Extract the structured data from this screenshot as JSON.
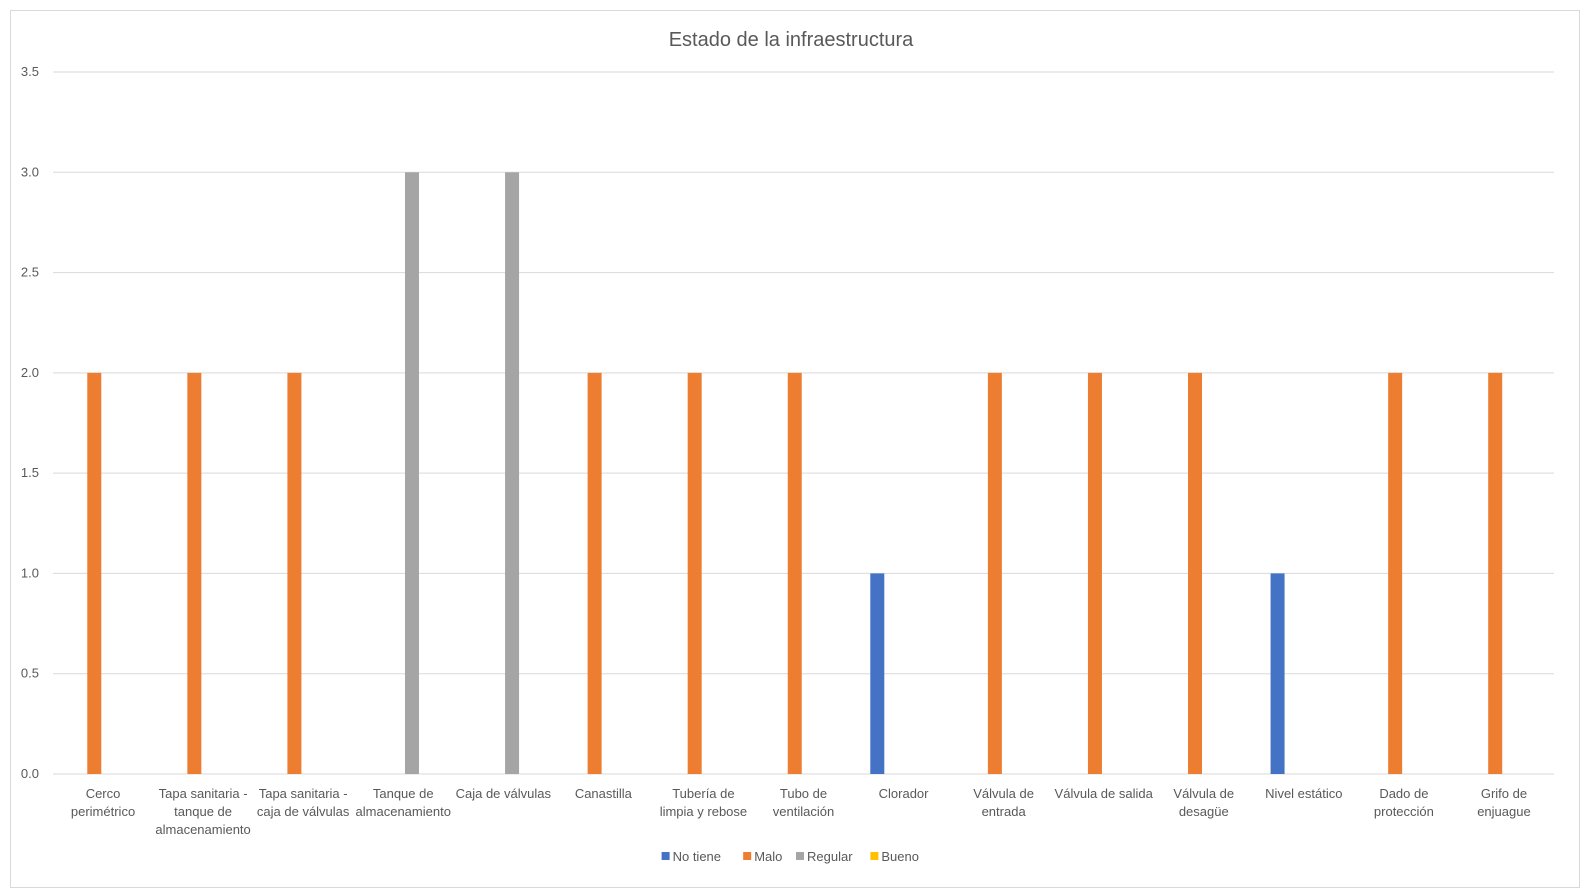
{
  "chart_data": {
    "type": "bar",
    "title": "Estado de la infraestructura",
    "xlabel": "",
    "ylabel": "",
    "ylim": [
      0,
      3.5
    ],
    "yticks": [
      "0.0",
      "0.5",
      "1.0",
      "1.5",
      "2.0",
      "2.5",
      "3.0",
      "3.5"
    ],
    "ytick_values": [
      0,
      0.5,
      1,
      1.5,
      2,
      2.5,
      3,
      3.5
    ],
    "grid": true,
    "legend_position": "bottom",
    "categories": [
      [
        "Cerco",
        "perimétrico"
      ],
      [
        "Tapa sanitaria -",
        "tanque de",
        "almacenamiento"
      ],
      [
        "Tapa sanitaria -",
        "caja de válvulas"
      ],
      [
        "Tanque de",
        "almacenamiento"
      ],
      [
        "Caja de válvulas"
      ],
      [
        "Canastilla"
      ],
      [
        "Tubería de",
        "limpia y rebose"
      ],
      [
        "Tubo de",
        "ventilación"
      ],
      [
        "Clorador"
      ],
      [
        "Válvula de",
        "entrada"
      ],
      [
        "Válvula de salida"
      ],
      [
        "Válvula de",
        "desagüe"
      ],
      [
        "Nivel estático"
      ],
      [
        "Dado de",
        "protección"
      ],
      [
        "Grifo de",
        "enjuague"
      ]
    ],
    "series": [
      {
        "name": "No tiene",
        "color": "#4472C4",
        "values": [
          null,
          null,
          null,
          null,
          null,
          null,
          null,
          null,
          1,
          null,
          null,
          null,
          1,
          null,
          null
        ]
      },
      {
        "name": "Malo",
        "color": "#ED7D31",
        "values": [
          2,
          2,
          2,
          null,
          null,
          2,
          2,
          2,
          null,
          2,
          2,
          2,
          null,
          2,
          2
        ]
      },
      {
        "name": "Regular",
        "color": "#A5A5A5",
        "values": [
          null,
          null,
          null,
          3,
          3,
          null,
          null,
          null,
          null,
          null,
          null,
          null,
          null,
          null,
          null
        ]
      },
      {
        "name": "Bueno",
        "color": "#FFC000",
        "values": [
          null,
          null,
          null,
          null,
          null,
          null,
          null,
          null,
          null,
          null,
          null,
          null,
          null,
          null,
          null
        ]
      }
    ]
  }
}
